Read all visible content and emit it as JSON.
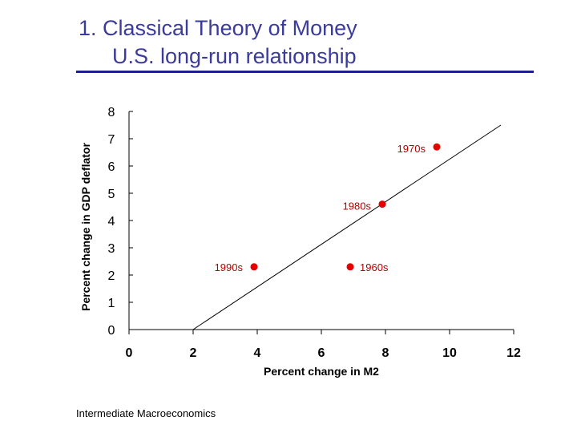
{
  "slide": {
    "title_line1": "1.  Classical Theory of Money",
    "title_line2": "U.S. long-run relationship",
    "footer": "Intermediate Macroeconomics"
  },
  "colors": {
    "title": "#3b3b9c",
    "rule": "#1f1f8c",
    "points": "#e60000",
    "point_labels": "#b30000"
  },
  "chart_data": {
    "type": "scatter",
    "xlabel": "Percent change in M2",
    "ylabel": "Percent change in GDP deflator",
    "xlim": [
      0,
      12
    ],
    "ylim": [
      0,
      8
    ],
    "xticks": [
      0,
      2,
      4,
      6,
      8,
      10,
      12
    ],
    "yticks": [
      0,
      1,
      2,
      3,
      4,
      5,
      6,
      7,
      8
    ],
    "grid": false,
    "points": [
      {
        "label": "1970s",
        "x": 9.6,
        "y": 6.7
      },
      {
        "label": "1980s",
        "x": 7.9,
        "y": 4.6
      },
      {
        "label": "1990s",
        "x": 3.9,
        "y": 2.3
      },
      {
        "label": "1960s",
        "x": 6.9,
        "y": 2.3
      }
    ],
    "trend_line": {
      "x": [
        2.0,
        11.6
      ],
      "y": [
        0.0,
        7.5
      ]
    }
  }
}
